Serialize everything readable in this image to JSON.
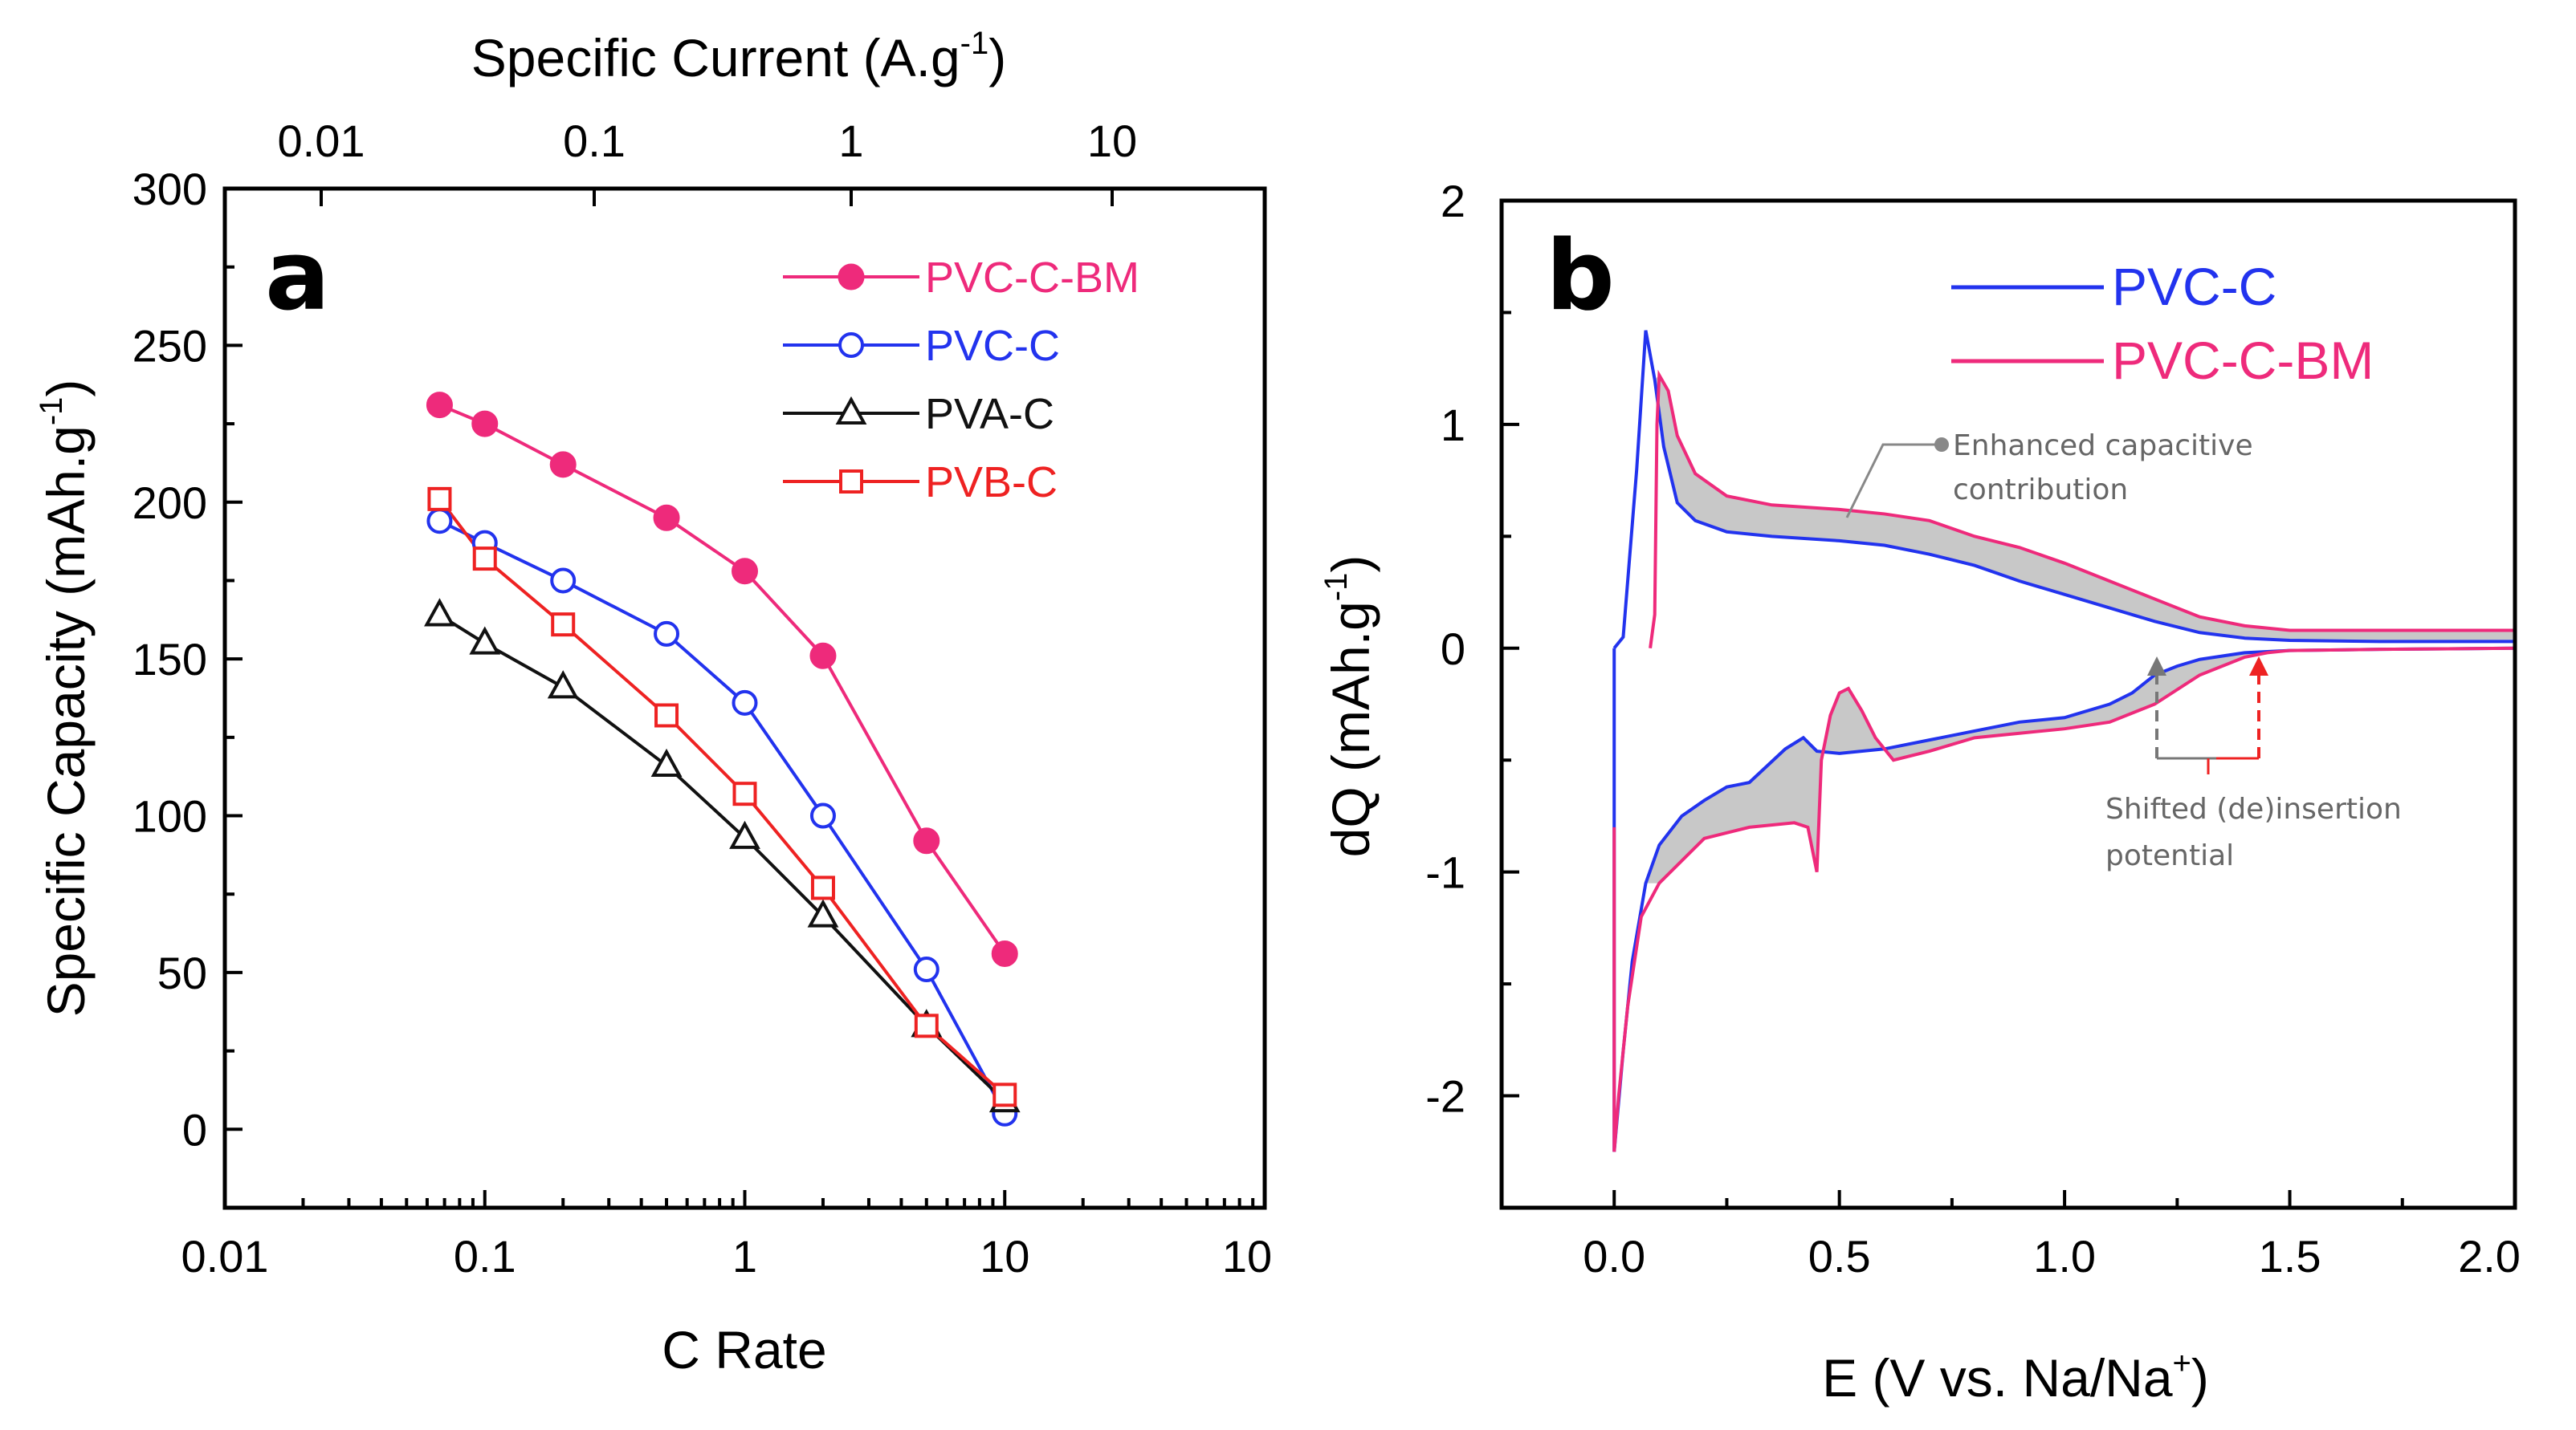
{
  "chart_data": [
    {
      "type": "line",
      "panel_label": "a",
      "xlabel": "C Rate",
      "xlabel_top": "Specific Current (A.g",
      "xlabel_top_sup": "-1",
      "xlabel_top_close": ")",
      "ylabel": "Specific Capacity (mAh.g",
      "ylabel_sup": "-1",
      "ylabel_close": ")",
      "x_scale": "log",
      "xlim": [
        0.01,
        100
      ],
      "ylim": [
        -25,
        300
      ],
      "x_ticks": [
        "0.01",
        "0.1",
        "1",
        "10",
        "10"
      ],
      "x_top_ticks": [
        "0.01",
        "0.1",
        "1",
        "10"
      ],
      "y_ticks": [
        "0",
        "50",
        "100",
        "150",
        "200",
        "250",
        "300"
      ],
      "x": [
        0.067,
        0.1,
        0.2,
        0.5,
        1,
        2,
        5,
        10
      ],
      "series": [
        {
          "name": "PVC-C-BM",
          "color": "#ee2a7b",
          "marker": "filled-circle",
          "values": [
            231,
            225,
            212,
            195,
            178,
            151,
            92,
            56
          ]
        },
        {
          "name": "PVC-C",
          "color": "#2233ee",
          "marker": "open-circle",
          "values": [
            194,
            187,
            175,
            158,
            136,
            100,
            51,
            5
          ]
        },
        {
          "name": "PVA-C",
          "color": "#111111",
          "marker": "open-triangle",
          "values": [
            164,
            155,
            141,
            116,
            93,
            68,
            33,
            9
          ]
        },
        {
          "name": "PVB-C",
          "color": "#ee2222",
          "marker": "open-square",
          "values": [
            201,
            182,
            161,
            132,
            107,
            77,
            33,
            11
          ]
        }
      ]
    },
    {
      "type": "line",
      "panel_label": "b",
      "xlabel": "E (V vs. Na/Na",
      "xlabel_sup": "+",
      "xlabel_close": ")",
      "ylabel": "dQ (mAh.g",
      "ylabel_sup": "-1",
      "ylabel_close": ")",
      "xlim": [
        -0.25,
        2.0
      ],
      "ylim": [
        -2.5,
        2.0
      ],
      "x_ticks": [
        "0.0",
        "0.5",
        "1.0",
        "1.5",
        "2.0"
      ],
      "y_ticks": [
        "-2",
        "-1",
        "0",
        "1",
        "2"
      ],
      "series": [
        {
          "name": "PVC-C",
          "color": "#2233ee",
          "charge": [
            [
              0.0,
              0.0
            ],
            [
              0.02,
              0.05
            ],
            [
              0.05,
              0.8
            ],
            [
              0.07,
              1.42
            ],
            [
              0.09,
              1.2
            ],
            [
              0.11,
              0.9
            ],
            [
              0.14,
              0.65
            ],
            [
              0.18,
              0.57
            ],
            [
              0.25,
              0.52
            ],
            [
              0.35,
              0.5
            ],
            [
              0.5,
              0.48
            ],
            [
              0.6,
              0.46
            ],
            [
              0.7,
              0.42
            ],
            [
              0.8,
              0.37
            ],
            [
              0.9,
              0.3
            ],
            [
              1.0,
              0.24
            ],
            [
              1.1,
              0.18
            ],
            [
              1.2,
              0.12
            ],
            [
              1.3,
              0.07
            ],
            [
              1.4,
              0.045
            ],
            [
              1.5,
              0.035
            ],
            [
              1.7,
              0.03
            ],
            [
              2.0,
              0.03
            ]
          ],
          "discharge": [
            [
              2.0,
              0.0
            ],
            [
              1.7,
              -0.005
            ],
            [
              1.5,
              -0.01
            ],
            [
              1.4,
              -0.02
            ],
            [
              1.3,
              -0.05
            ],
            [
              1.25,
              -0.08
            ],
            [
              1.2,
              -0.12
            ],
            [
              1.15,
              -0.2
            ],
            [
              1.1,
              -0.25
            ],
            [
              1.0,
              -0.31
            ],
            [
              0.9,
              -0.33
            ],
            [
              0.8,
              -0.37
            ],
            [
              0.7,
              -0.41
            ],
            [
              0.6,
              -0.45
            ],
            [
              0.5,
              -0.47
            ],
            [
              0.45,
              -0.46
            ],
            [
              0.42,
              -0.4
            ],
            [
              0.38,
              -0.45
            ],
            [
              0.3,
              -0.6
            ],
            [
              0.25,
              -0.62
            ],
            [
              0.2,
              -0.68
            ],
            [
              0.15,
              -0.75
            ],
            [
              0.1,
              -0.88
            ],
            [
              0.07,
              -1.05
            ],
            [
              0.04,
              -1.4
            ],
            [
              0.02,
              -1.8
            ],
            [
              0.0,
              -2.25
            ],
            [
              0.0,
              -0.8
            ],
            [
              0.0,
              0.0
            ]
          ]
        },
        {
          "name": "PVC-C-BM",
          "color": "#ee2a7b",
          "charge": [
            [
              0.08,
              0.0
            ],
            [
              0.09,
              0.15
            ],
            [
              0.095,
              1.0
            ],
            [
              0.1,
              1.22
            ],
            [
              0.12,
              1.15
            ],
            [
              0.14,
              0.95
            ],
            [
              0.18,
              0.78
            ],
            [
              0.25,
              0.68
            ],
            [
              0.35,
              0.64
            ],
            [
              0.5,
              0.62
            ],
            [
              0.6,
              0.6
            ],
            [
              0.7,
              0.57
            ],
            [
              0.8,
              0.5
            ],
            [
              0.9,
              0.45
            ],
            [
              1.0,
              0.38
            ],
            [
              1.1,
              0.3
            ],
            [
              1.2,
              0.22
            ],
            [
              1.3,
              0.14
            ],
            [
              1.4,
              0.1
            ],
            [
              1.5,
              0.08
            ],
            [
              1.7,
              0.08
            ],
            [
              2.0,
              0.08
            ]
          ],
          "discharge": [
            [
              2.0,
              0.0
            ],
            [
              1.7,
              -0.005
            ],
            [
              1.5,
              -0.01
            ],
            [
              1.45,
              -0.02
            ],
            [
              1.4,
              -0.04
            ],
            [
              1.3,
              -0.12
            ],
            [
              1.2,
              -0.25
            ],
            [
              1.1,
              -0.33
            ],
            [
              1.0,
              -0.36
            ],
            [
              0.9,
              -0.38
            ],
            [
              0.8,
              -0.4
            ],
            [
              0.7,
              -0.46
            ],
            [
              0.62,
              -0.5
            ],
            [
              0.58,
              -0.4
            ],
            [
              0.55,
              -0.28
            ],
            [
              0.52,
              -0.18
            ],
            [
              0.5,
              -0.2
            ],
            [
              0.48,
              -0.3
            ],
            [
              0.46,
              -0.5
            ],
            [
              0.45,
              -1.0
            ],
            [
              0.43,
              -0.8
            ],
            [
              0.4,
              -0.78
            ],
            [
              0.3,
              -0.8
            ],
            [
              0.2,
              -0.85
            ],
            [
              0.15,
              -0.95
            ],
            [
              0.1,
              -1.05
            ],
            [
              0.06,
              -1.2
            ],
            [
              0.03,
              -1.6
            ],
            [
              0.01,
              -2.0
            ],
            [
              0.0,
              -2.25
            ],
            [
              0.0,
              -0.8
            ]
          ]
        }
      ],
      "annotations": [
        {
          "text_line1": "Enhanced capacitive",
          "text_line2": "contribution"
        },
        {
          "text_line1": "Shifted (de)insertion",
          "text_line2": "potential"
        }
      ]
    }
  ]
}
